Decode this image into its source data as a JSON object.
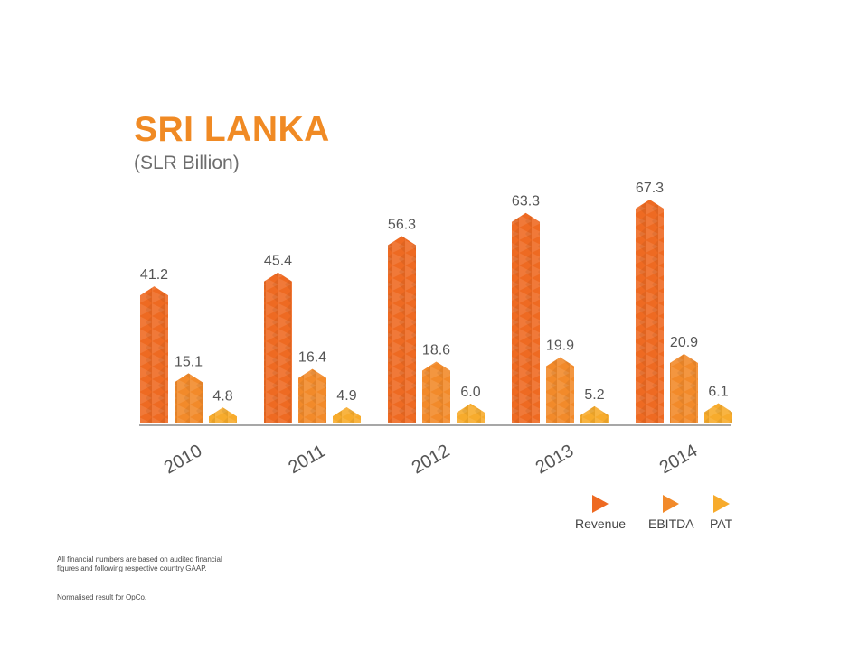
{
  "header": {
    "title": "SRI LANKA",
    "subtitle": "(SLR Billion)"
  },
  "chart_data": {
    "type": "bar",
    "title": "SRI LANKA",
    "subtitle": "(SLR Billion)",
    "categories": [
      "2010",
      "2011",
      "2012",
      "2013",
      "2014"
    ],
    "series": [
      {
        "name": "Revenue",
        "values": [
          41.2,
          45.4,
          56.3,
          63.3,
          67.3
        ],
        "color": "#ee6a22"
      },
      {
        "name": "EBITDA",
        "values": [
          15.1,
          16.4,
          18.6,
          19.9,
          20.9
        ],
        "color": "#f28a2a"
      },
      {
        "name": "PAT",
        "values": [
          4.8,
          4.9,
          6.0,
          5.2,
          6.1
        ],
        "color": "#f7ab2c"
      }
    ],
    "value_labels": [
      [
        "41.2",
        "45.4",
        "56.3",
        "63.3",
        "67.3"
      ],
      [
        "15.1",
        "16.4",
        "18.6",
        "19.9",
        "20.9"
      ],
      [
        "4.8",
        "4.9",
        "6.0",
        "5.2",
        "6.1"
      ]
    ],
    "ylim": [
      0,
      67.3
    ],
    "grid": false,
    "legend_position": "bottom-right"
  },
  "legend": {
    "items": [
      {
        "label": "Revenue",
        "color": "#ee6a22"
      },
      {
        "label": "EBITDA",
        "color": "#f28a2a"
      },
      {
        "label": "PAT",
        "color": "#f7ab2c"
      }
    ]
  },
  "footnotes": {
    "note1": "All financial numbers are based on audited financial figures and following respective country GAAP.",
    "note2": "Normalised result for OpCo."
  }
}
